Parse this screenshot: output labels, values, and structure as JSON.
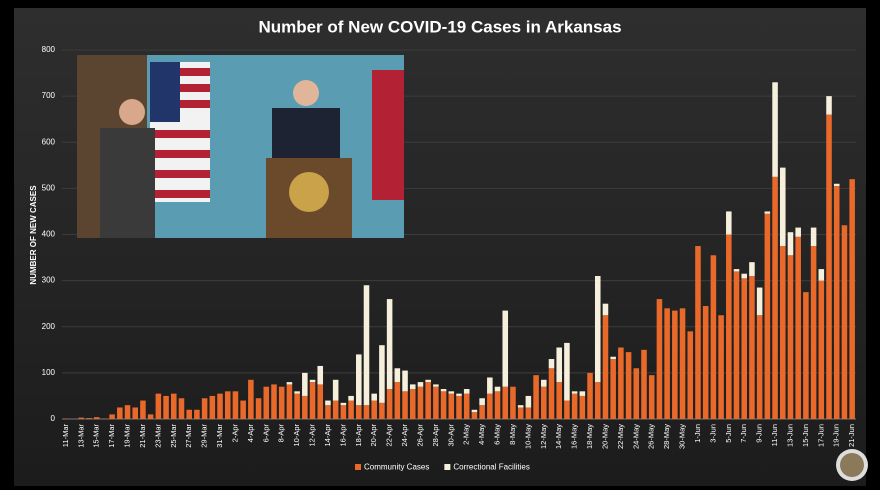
{
  "chart_data": {
    "type": "stacked_bar",
    "title": "Number of New COVID-19 Cases in Arkansas",
    "y_label": "NUMBER OF NEW CASES",
    "categories": [
      "11-Mar",
      null,
      "13-Mar",
      null,
      "15-Mar",
      null,
      "17-Mar",
      null,
      "19-Mar",
      null,
      "21-Mar",
      null,
      "23-Mar",
      null,
      "25-Mar",
      null,
      "27-Mar",
      null,
      "29-Mar",
      null,
      "31-Mar",
      null,
      "2-Apr",
      null,
      "4-Apr",
      null,
      "6-Apr",
      null,
      "8-Apr",
      null,
      "10-Apr",
      null,
      "12-Apr",
      null,
      "14-Apr",
      null,
      "16-Apr",
      null,
      "18-Apr",
      null,
      "20-Apr",
      null,
      "22-Apr",
      null,
      "24-Apr",
      null,
      "26-Apr",
      null,
      "28-Apr",
      null,
      "30-Apr",
      null,
      "2-May",
      null,
      "4-May",
      null,
      "6-May",
      null,
      "8-May",
      null,
      "10-May",
      null,
      "12-May",
      null,
      "14-May",
      null,
      "16-May",
      null,
      "18-May",
      null,
      "20-May",
      null,
      "22-May",
      null,
      "24-May",
      null,
      "26-May",
      null,
      "28-May",
      null,
      "30-May",
      null,
      "1-Jun",
      null,
      "3-Jun",
      null,
      "5-Jun",
      null,
      "7-Jun",
      null,
      "9-Jun",
      null,
      "11-Jun",
      null,
      "13-Jun",
      null,
      "15-Jun",
      null,
      "17-Jun",
      null,
      "19-Jun",
      null,
      "21-Jun"
    ],
    "series": [
      {
        "name": "Community Cases",
        "color": "#e8692a",
        "values": [
          1,
          0,
          3,
          2,
          4,
          1,
          10,
          25,
          30,
          25,
          40,
          10,
          55,
          50,
          55,
          45,
          20,
          20,
          45,
          50,
          55,
          60,
          60,
          40,
          85,
          45,
          70,
          75,
          70,
          75,
          55,
          50,
          80,
          75,
          30,
          40,
          30,
          40,
          30,
          30,
          40,
          35,
          65,
          80,
          60,
          65,
          70,
          80,
          70,
          60,
          55,
          50,
          55,
          15,
          30,
          55,
          60,
          70,
          70,
          25,
          25,
          95,
          70,
          110,
          80,
          40,
          55,
          50,
          100,
          80,
          225,
          130,
          155,
          145,
          110,
          150,
          95,
          260,
          240,
          235,
          240,
          190,
          375,
          245,
          355,
          225,
          400,
          320,
          305,
          310,
          225,
          445,
          525,
          375,
          355,
          395,
          275,
          375,
          300,
          660,
          505,
          420,
          520
        ]
      },
      {
        "name": "Correctional Facilities",
        "color": "#f6efdc",
        "values": [
          0,
          0,
          0,
          0,
          0,
          0,
          0,
          0,
          0,
          0,
          0,
          0,
          0,
          0,
          0,
          0,
          0,
          0,
          0,
          0,
          0,
          0,
          0,
          0,
          0,
          0,
          0,
          0,
          0,
          5,
          5,
          50,
          5,
          40,
          10,
          45,
          5,
          10,
          110,
          260,
          15,
          125,
          195,
          30,
          45,
          10,
          10,
          5,
          5,
          5,
          5,
          5,
          10,
          5,
          15,
          35,
          10,
          165,
          0,
          5,
          25,
          0,
          15,
          20,
          75,
          125,
          5,
          10,
          0,
          230,
          25,
          5,
          0,
          0,
          0,
          0,
          0,
          0,
          0,
          0,
          0,
          0,
          0,
          0,
          0,
          0,
          50,
          5,
          10,
          30,
          60,
          5,
          205,
          170,
          50,
          20,
          0,
          40,
          25,
          40,
          5,
          0,
          0
        ]
      }
    ],
    "ylim": [
      0,
      800
    ],
    "yticks": [
      0,
      100,
      200,
      300,
      400,
      500,
      600,
      700,
      800
    ],
    "grid": true,
    "legend": "bottom"
  }
}
